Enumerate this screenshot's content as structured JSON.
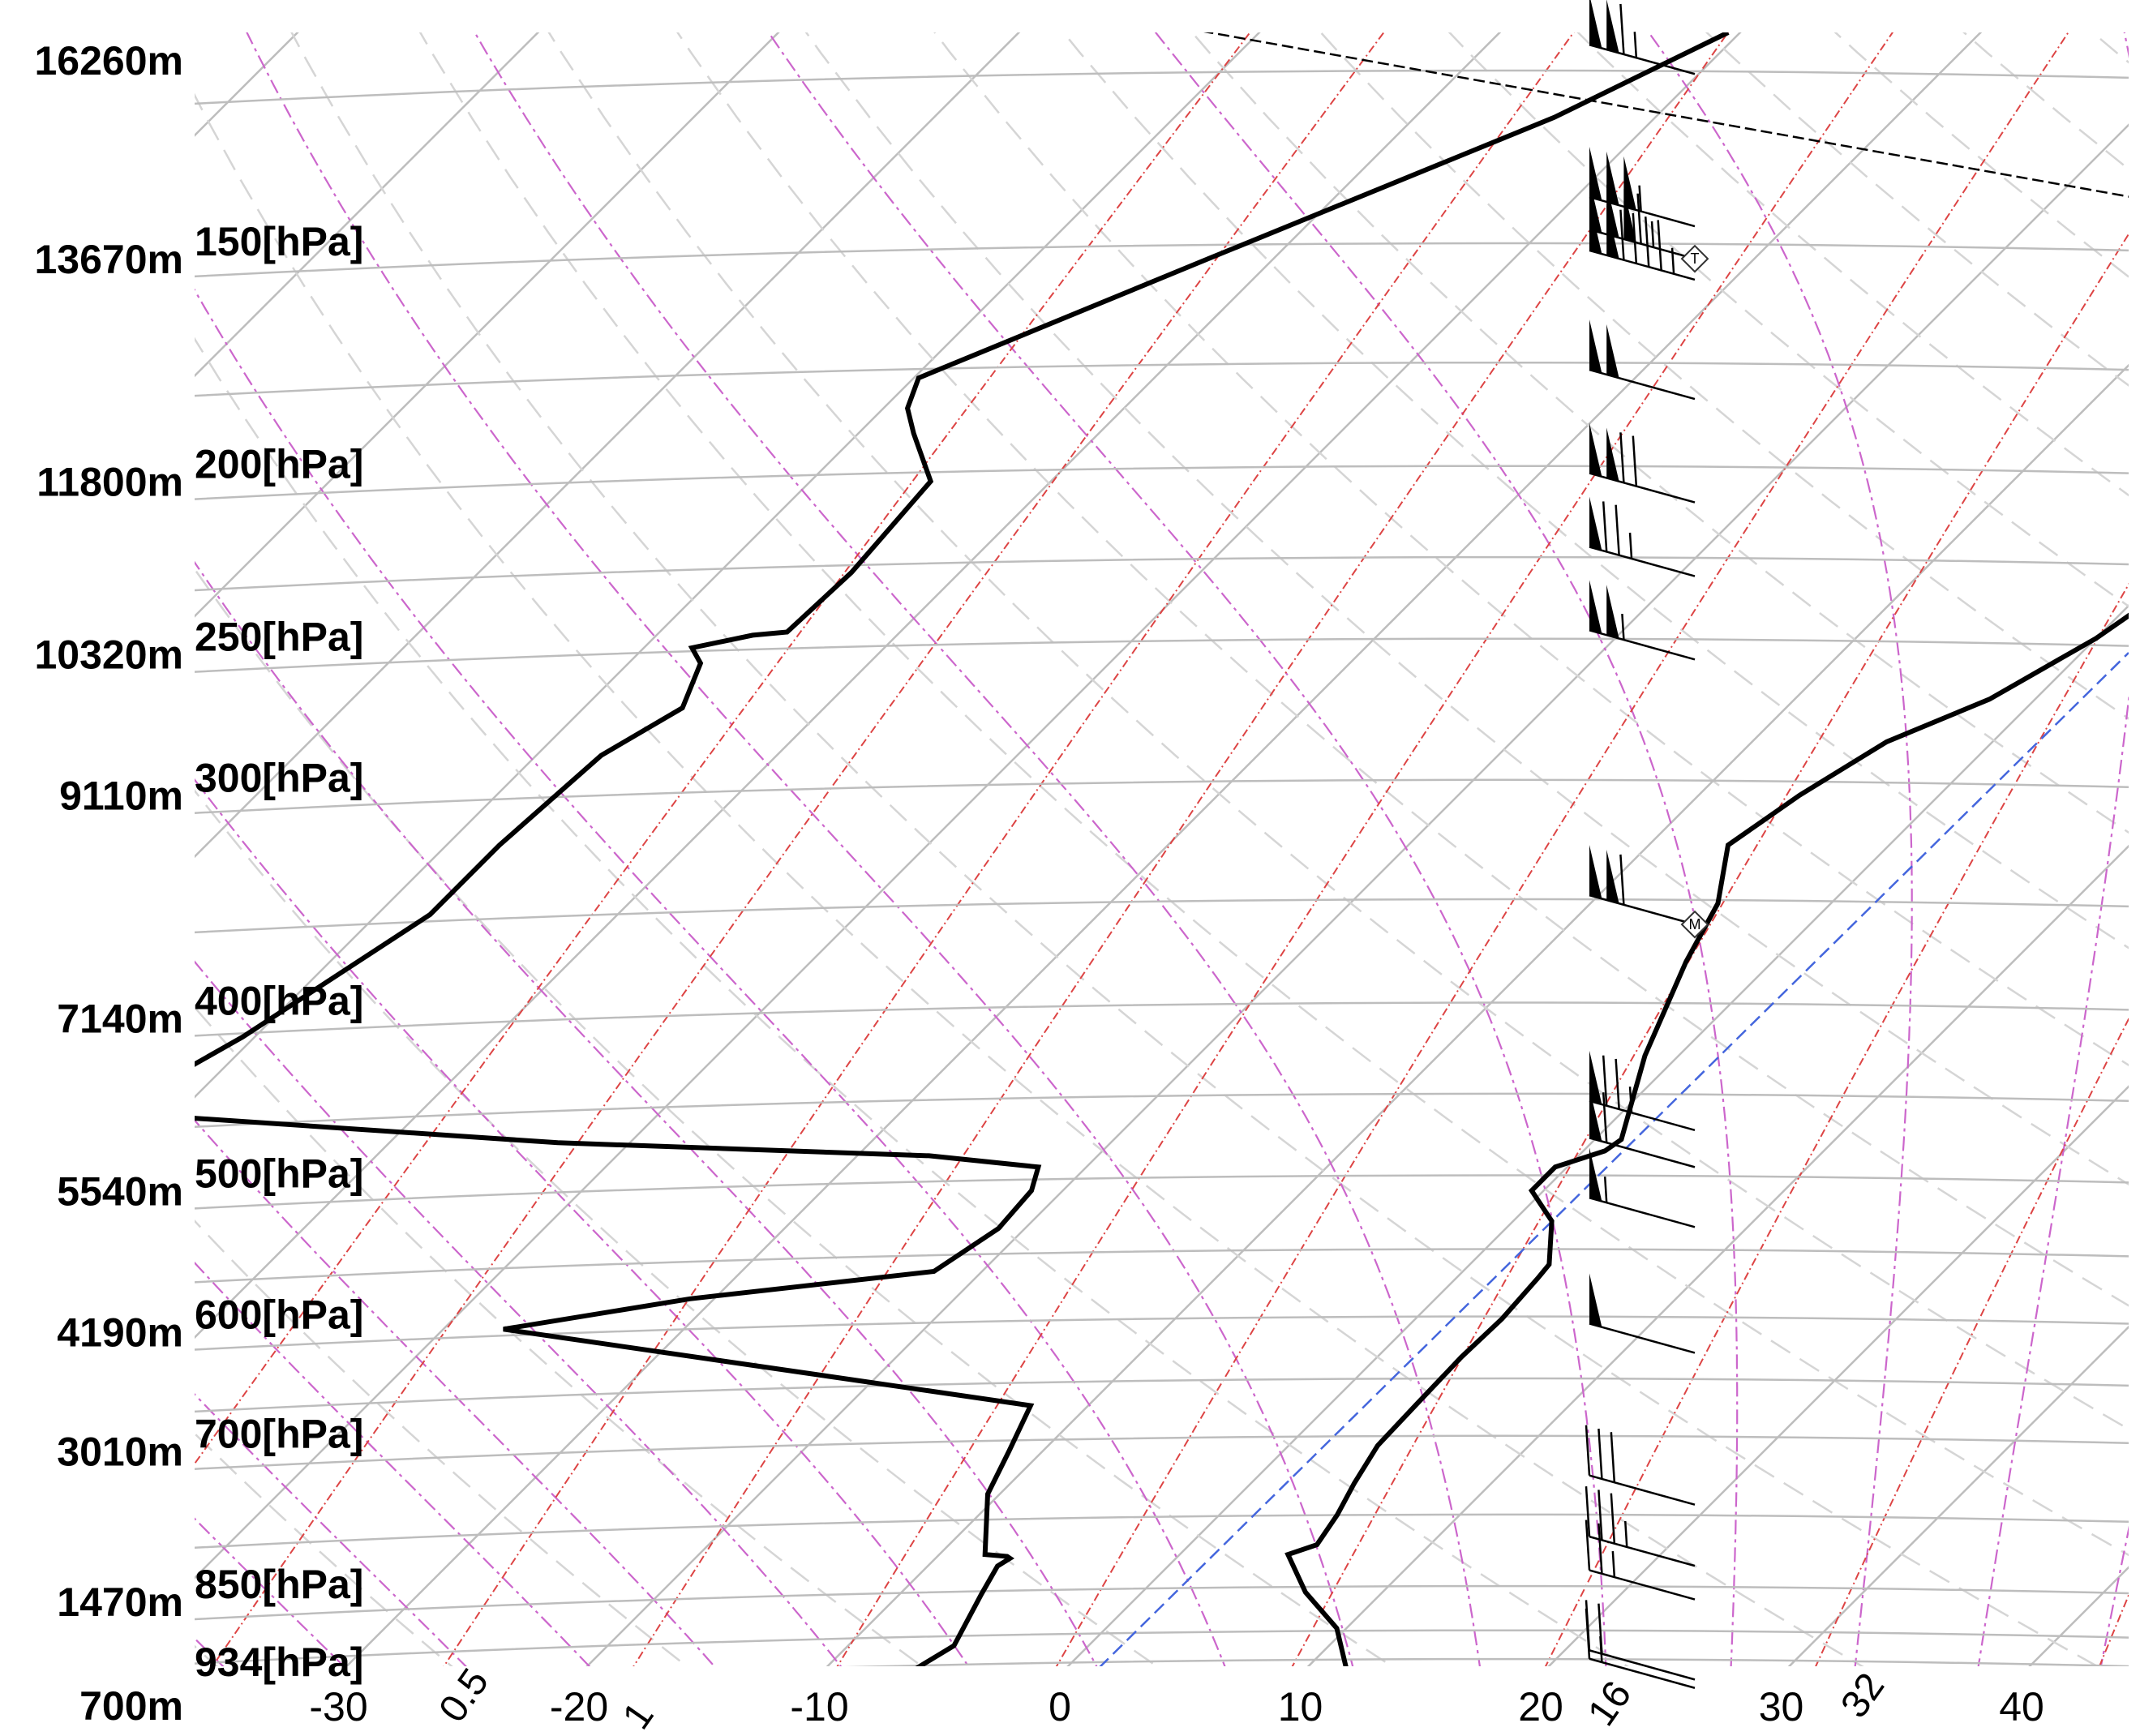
{
  "chart_data": {
    "type": "skew-t",
    "title": "",
    "xlabel": "",
    "ylabel": "",
    "xlim": [
      -30,
      40
    ],
    "x_unit_implied": "°C",
    "x_ticks": [
      "-30",
      "-20",
      "-10",
      "0",
      "10",
      "20",
      "30",
      "40"
    ],
    "mixing_ratio_labels": [
      "0.5",
      "1",
      "16",
      "32"
    ],
    "pressure_levels": [
      {
        "p": 150,
        "label": "150[hPa]",
        "height": "13670m"
      },
      {
        "p": 200,
        "label": "200[hPa]",
        "height": "11800m"
      },
      {
        "p": 250,
        "label": "250[hPa]",
        "height": "10320m"
      },
      {
        "p": 300,
        "label": "300[hPa]",
        "height": "9110m"
      },
      {
        "p": 400,
        "label": "400[hPa]",
        "height": "7140m"
      },
      {
        "p": 500,
        "label": "500[hPa]",
        "height": "5540m"
      },
      {
        "p": 600,
        "label": "600[hPa]",
        "height": "4190m"
      },
      {
        "p": 700,
        "label": "700[hPa]",
        "height": "3010m"
      },
      {
        "p": 850,
        "label": "850[hPa]",
        "height": "1470m"
      },
      {
        "p": 934,
        "label": "934[hPa]",
        "height": "700m"
      }
    ],
    "top_height_label": "16260m",
    "p_top": 112,
    "p_bottom": 934,
    "series": [
      {
        "key": "temperature",
        "values": [
          [
            112,
            18.0
          ],
          [
            120,
            16.8
          ],
          [
            140,
            13.9
          ],
          [
            147,
            10.8
          ],
          [
            150,
            10.6
          ],
          [
            165,
            9.5
          ],
          [
            185,
            8.6
          ],
          [
            200,
            7.4
          ],
          [
            212,
            3.5
          ],
          [
            222,
            1.4
          ],
          [
            245,
            0.0
          ],
          [
            265,
            -1.9
          ],
          [
            280,
            -4.4
          ],
          [
            300,
            -5.8
          ],
          [
            320,
            -6.7
          ],
          [
            345,
            -4.7
          ],
          [
            372,
            -3.6
          ],
          [
            420,
            -1.4
          ],
          [
            468,
            1.1
          ],
          [
            475,
            0.9
          ],
          [
            485,
            -0.5
          ],
          [
            500,
            -0.5
          ],
          [
            520,
            1.6
          ],
          [
            550,
            3.3
          ],
          [
            560,
            3.4
          ],
          [
            590,
            3.6
          ],
          [
            620,
            3.5
          ],
          [
            660,
            3.6
          ],
          [
            695,
            3.7
          ],
          [
            730,
            4.3
          ],
          [
            760,
            4.9
          ],
          [
            790,
            5.3
          ],
          [
            800,
            4.5
          ],
          [
            840,
            6.8
          ],
          [
            880,
            9.6
          ],
          [
            930,
            11.8
          ],
          [
            934,
            12.8
          ]
        ]
      },
      {
        "key": "dewpoint",
        "values": [
          [
            112,
            -40.5
          ],
          [
            125,
            -44.2
          ],
          [
            150,
            -52.7
          ],
          [
            175,
            -59.8
          ],
          [
            182,
            -59.0
          ],
          [
            188,
            -57.7
          ],
          [
            200,
            -55.0
          ],
          [
            225,
            -54.5
          ],
          [
            243,
            -54.7
          ],
          [
            244,
            -56.0
          ],
          [
            248,
            -58.0
          ],
          [
            253,
            -57.0
          ],
          [
            268,
            -55.9
          ],
          [
            285,
            -57.3
          ],
          [
            320,
            -57.8
          ],
          [
            350,
            -57.8
          ],
          [
            410,
            -60.5
          ],
          [
            450,
            -62.8
          ],
          [
            452,
            -62.9
          ],
          [
            470,
            -43.0
          ],
          [
            478,
            -27.0
          ],
          [
            485,
            -22.0
          ],
          [
            500,
            -21.3
          ],
          [
            525,
            -21.1
          ],
          [
            555,
            -22.0
          ],
          [
            575,
            -31.0
          ],
          [
            598,
            -37.5
          ],
          [
            660,
            -12.4
          ],
          [
            700,
            -11.4
          ],
          [
            740,
            -10.5
          ],
          [
            800,
            -8.1
          ],
          [
            802,
            -7.1
          ],
          [
            804,
            -6.9
          ],
          [
            812,
            -7.1
          ],
          [
            842,
            -6.6
          ],
          [
            900,
            -5.6
          ],
          [
            926,
            -6.2
          ],
          [
            932,
            -5.6
          ]
        ]
      }
    ],
    "tropopause_line": [
      [
        111,
        -64.0
      ],
      [
        150,
        0.0
      ],
      [
        205,
        30.0
      ],
      [
        260,
        50.0
      ],
      [
        330,
        64.0
      ]
    ],
    "barbs": [
      {
        "p": 115,
        "speed_kt": 115,
        "marker": "none"
      },
      {
        "p": 140,
        "speed_kt": 155,
        "marker": "none"
      },
      {
        "p": 146,
        "speed_kt": 165,
        "marker": "T"
      },
      {
        "p": 150,
        "speed_kt": 145,
        "marker": "none"
      },
      {
        "p": 175,
        "speed_kt": 100,
        "marker": "none"
      },
      {
        "p": 200,
        "speed_kt": 120,
        "marker": "none"
      },
      {
        "p": 220,
        "speed_kt": 75,
        "marker": "none"
      },
      {
        "p": 245,
        "speed_kt": 105,
        "marker": "none"
      },
      {
        "p": 345,
        "speed_kt": 110,
        "marker": "M"
      },
      {
        "p": 450,
        "speed_kt": 75,
        "marker": "none"
      },
      {
        "p": 472,
        "speed_kt": 60,
        "marker": "none"
      },
      {
        "p": 510,
        "speed_kt": 55,
        "marker": "none"
      },
      {
        "p": 600,
        "speed_kt": 50,
        "marker": "none"
      },
      {
        "p": 730,
        "speed_kt": 30,
        "marker": "none"
      },
      {
        "p": 790,
        "speed_kt": 35,
        "marker": "none"
      },
      {
        "p": 825,
        "speed_kt": 25,
        "marker": "none"
      },
      {
        "p": 915,
        "speed_kt": 20,
        "marker": "none"
      },
      {
        "p": 925,
        "speed_kt": 15,
        "marker": "none"
      }
    ],
    "colors": {
      "profile": "#000000",
      "isotherm": "#bdbdbd",
      "dry_adiabat": "#d5d5d5",
      "moist_adiabat": "#cc66cc",
      "mixing_ratio": "#dd4444",
      "freezing_level": "#4466dd",
      "isobar": "#bdbdbd"
    },
    "grid": true
  }
}
